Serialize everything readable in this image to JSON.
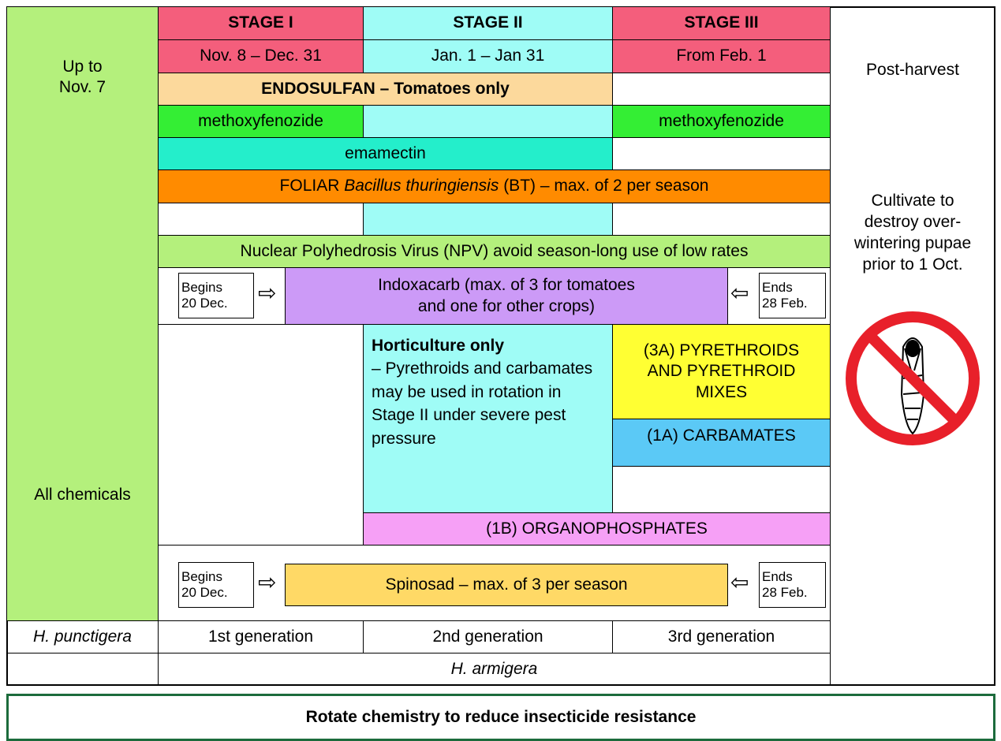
{
  "left": {
    "top": [
      "Up to",
      "Nov. 7"
    ],
    "bottom": "All chemicals"
  },
  "stages": [
    {
      "name": "STAGE I",
      "dates": "Nov. 8 – Dec. 31"
    },
    {
      "name": "STAGE II",
      "dates": "Jan. 1 – Jan 31"
    },
    {
      "name": "STAGE III",
      "dates": "From Feb. 1"
    }
  ],
  "rows": {
    "endosulfan": "ENDOSULFAN – Tomatoes only",
    "methoxyfenozide_stage1": "methoxyfenozide",
    "methoxyfenozide_stage3": "methoxyfenozide",
    "emamectin": "emamectin",
    "bt": {
      "prefix": "FOLIAR",
      "italic": "Bacillus thuringiensis",
      "suffix": "(BT) – max. of 2 per season"
    },
    "npv": "Nuclear Polyhedrosis Virus (NPV) avoid season-long use of low rates",
    "indoxacarb": {
      "begins": [
        "Begins",
        "20 Dec."
      ],
      "lines": [
        "Indoxacarb (max. of 3 for tomatoes",
        "and one for other crops)"
      ],
      "ends": [
        "Ends",
        "28 Feb."
      ]
    },
    "horticulture": {
      "heading": "Horticulture only",
      "text": "– Pyrethroids and carbamates may be used in rotation in Stage II under severe pest pressure"
    },
    "pyrethroids": [
      "(3A) PYRETHROIDS",
      "AND PYRETHROID",
      "MIXES"
    ],
    "carbamates": "(1A) CARBAMATES",
    "organophosphates": "(1B) ORGANOPHOSPHATES",
    "spinosad": {
      "begins": [
        "Begins",
        "20 Dec."
      ],
      "text": "Spinosad – max. of 3 per season",
      "ends": [
        "Ends",
        "28 Feb."
      ]
    }
  },
  "generations": {
    "species_1": "H. punctigera",
    "labels": [
      "1st generation",
      "2nd generation",
      "3rd generation"
    ],
    "species_2": "H. armigera"
  },
  "right": {
    "post_harvest": "Post-harvest",
    "cultivate": [
      "Cultivate to",
      "destroy over-",
      "wintering pupae",
      "prior to 1 Oct."
    ]
  },
  "footer": "Rotate chemistry to reduce insecticide resistance"
}
